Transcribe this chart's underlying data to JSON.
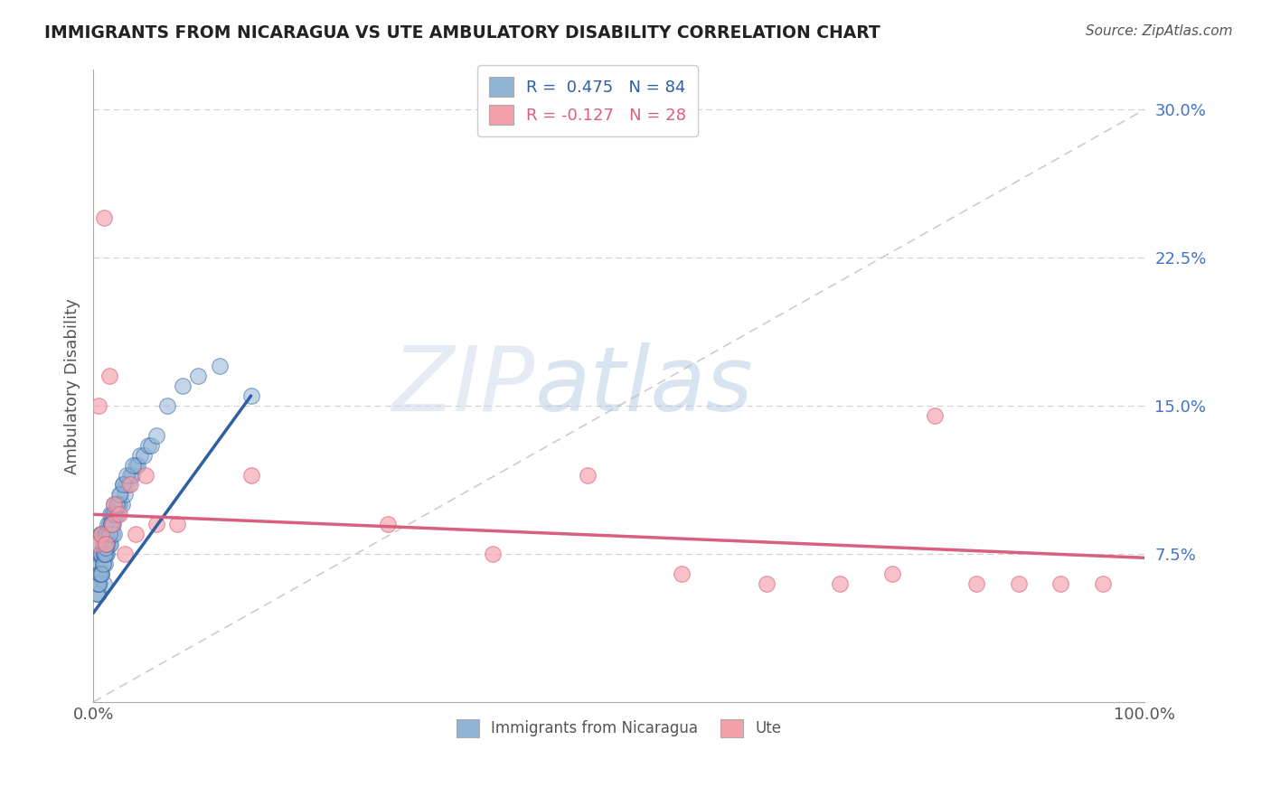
{
  "title": "IMMIGRANTS FROM NICARAGUA VS UTE AMBULATORY DISABILITY CORRELATION CHART",
  "source": "Source: ZipAtlas.com",
  "ylabel": "Ambulatory Disability",
  "legend_labels": [
    "Immigrants from Nicaragua",
    "Ute"
  ],
  "r_nicaragua": 0.475,
  "n_nicaragua": 84,
  "r_ute": -0.127,
  "n_ute": 28,
  "blue_color": "#92b4d4",
  "pink_color": "#f4a0aa",
  "blue_line_color": "#2c5fa3",
  "pink_line_color": "#d95f7f",
  "xlim": [
    0.0,
    1.0
  ],
  "ylim": [
    0.0,
    0.32
  ],
  "ytick_vals": [
    0.075,
    0.15,
    0.225,
    0.3
  ],
  "ytick_labels": [
    "7.5%",
    "15.0%",
    "22.5%",
    "30.0%"
  ],
  "xtick_vals": [
    0.0,
    1.0
  ],
  "xtick_labels": [
    "0.0%",
    "100.0%"
  ],
  "blue_scatter_x": [
    0.002,
    0.003,
    0.003,
    0.004,
    0.004,
    0.005,
    0.005,
    0.005,
    0.006,
    0.006,
    0.006,
    0.007,
    0.007,
    0.007,
    0.008,
    0.008,
    0.008,
    0.009,
    0.009,
    0.01,
    0.01,
    0.01,
    0.011,
    0.011,
    0.012,
    0.012,
    0.013,
    0.013,
    0.014,
    0.014,
    0.015,
    0.015,
    0.016,
    0.016,
    0.017,
    0.018,
    0.018,
    0.019,
    0.02,
    0.02,
    0.021,
    0.022,
    0.023,
    0.024,
    0.025,
    0.026,
    0.027,
    0.028,
    0.03,
    0.031,
    0.033,
    0.035,
    0.037,
    0.04,
    0.042,
    0.045,
    0.048,
    0.052,
    0.055,
    0.06,
    0.003,
    0.004,
    0.005,
    0.006,
    0.007,
    0.008,
    0.009,
    0.01,
    0.011,
    0.012,
    0.013,
    0.015,
    0.017,
    0.02,
    0.022,
    0.025,
    0.028,
    0.032,
    0.038,
    0.07,
    0.085,
    0.1,
    0.12,
    0.15
  ],
  "blue_scatter_y": [
    0.06,
    0.055,
    0.07,
    0.06,
    0.075,
    0.055,
    0.065,
    0.08,
    0.06,
    0.07,
    0.075,
    0.065,
    0.075,
    0.085,
    0.065,
    0.075,
    0.085,
    0.07,
    0.08,
    0.06,
    0.075,
    0.085,
    0.07,
    0.08,
    0.075,
    0.085,
    0.075,
    0.085,
    0.08,
    0.09,
    0.08,
    0.09,
    0.08,
    0.095,
    0.09,
    0.085,
    0.095,
    0.09,
    0.085,
    0.1,
    0.095,
    0.1,
    0.095,
    0.1,
    0.1,
    0.105,
    0.1,
    0.11,
    0.105,
    0.11,
    0.11,
    0.115,
    0.115,
    0.12,
    0.12,
    0.125,
    0.125,
    0.13,
    0.13,
    0.135,
    0.055,
    0.06,
    0.06,
    0.065,
    0.065,
    0.065,
    0.07,
    0.075,
    0.075,
    0.078,
    0.08,
    0.085,
    0.09,
    0.095,
    0.1,
    0.105,
    0.11,
    0.115,
    0.12,
    0.15,
    0.16,
    0.165,
    0.17,
    0.155
  ],
  "blue_line_x": [
    0.0,
    0.15
  ],
  "blue_line_y": [
    0.045,
    0.155
  ],
  "pink_scatter_x": [
    0.003,
    0.005,
    0.008,
    0.01,
    0.012,
    0.015,
    0.018,
    0.02,
    0.025,
    0.03,
    0.035,
    0.04,
    0.05,
    0.06,
    0.08,
    0.15,
    0.28,
    0.38,
    0.47,
    0.56,
    0.64,
    0.71,
    0.76,
    0.8,
    0.84,
    0.88,
    0.92,
    0.96
  ],
  "pink_scatter_y": [
    0.08,
    0.15,
    0.085,
    0.245,
    0.08,
    0.165,
    0.09,
    0.1,
    0.095,
    0.075,
    0.11,
    0.085,
    0.115,
    0.09,
    0.09,
    0.115,
    0.09,
    0.075,
    0.115,
    0.065,
    0.06,
    0.06,
    0.065,
    0.145,
    0.06,
    0.06,
    0.06,
    0.06
  ],
  "pink_line_x": [
    0.0,
    1.0
  ],
  "pink_line_y": [
    0.095,
    0.073
  ]
}
